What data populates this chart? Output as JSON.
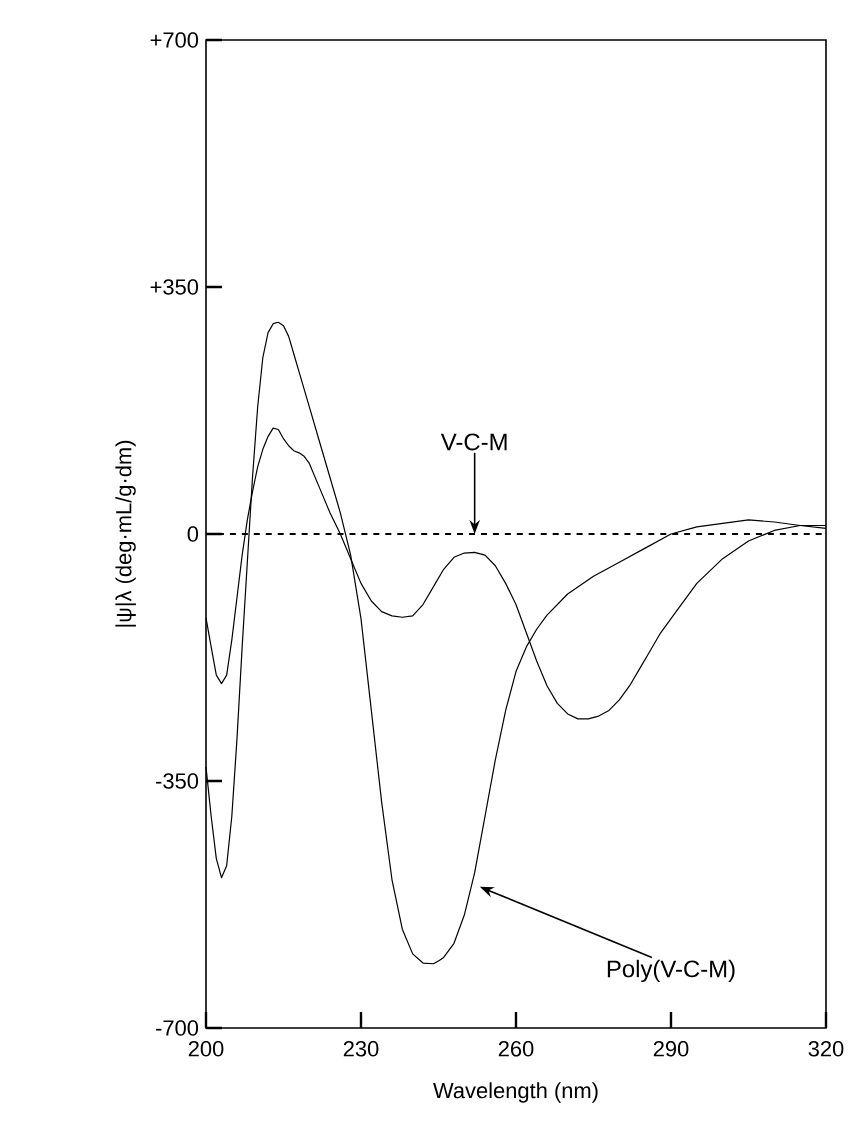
{
  "chart_data": {
    "type": "line",
    "xlabel": "Wavelength (nm)",
    "ylabel": "|ψ|λ (deg·mL/g·dm)",
    "xlim": [
      200,
      320
    ],
    "ylim": [
      -700,
      700
    ],
    "xticks": [
      200,
      230,
      260,
      290,
      320
    ],
    "yticks": [
      {
        "value": -700,
        "label": "-700"
      },
      {
        "value": -350,
        "label": "-350"
      },
      0,
      {
        "value": 350,
        "label": "+350"
      },
      {
        "value": 700,
        "label": "+700"
      }
    ],
    "marker": "none",
    "line_style": "solid",
    "ref_lines": [
      {
        "axis": "y",
        "value": 0,
        "line_style": "dashed",
        "color": "#000000"
      }
    ],
    "annotations": [
      {
        "text": "V-C-M",
        "x": 252,
        "y": 0
      },
      {
        "text": "Poly(V-C-M)",
        "x": 253,
        "y": -500
      }
    ],
    "series": [
      {
        "color": "#000000",
        "x": [
          200,
          201,
          202,
          203,
          204,
          205,
          206,
          207,
          208,
          209,
          210,
          211,
          212,
          213,
          214,
          215,
          216,
          217,
          218,
          220,
          222,
          224,
          226,
          228,
          230,
          232,
          234,
          236,
          238,
          240,
          242,
          244,
          245,
          246,
          248,
          250,
          252,
          254,
          256,
          258,
          260,
          262,
          264,
          266,
          268,
          270,
          275,
          280,
          285,
          290,
          295,
          300,
          305,
          310,
          315,
          320
        ],
        "values": [
          -330,
          -400,
          -460,
          -487,
          -470,
          -400,
          -290,
          -160,
          -40,
          80,
          180,
          250,
          285,
          298,
          300,
          295,
          280,
          255,
          230,
          180,
          130,
          80,
          30,
          -30,
          -120,
          -250,
          -380,
          -490,
          -560,
          -595,
          -608,
          -609,
          -605,
          -600,
          -580,
          -540,
          -480,
          -400,
          -320,
          -250,
          -195,
          -160,
          -135,
          -115,
          -100,
          -85,
          -60,
          -40,
          -20,
          0,
          10,
          15,
          20,
          17,
          12,
          8
        ]
      },
      {
        "color": "#000000",
        "x": [
          200,
          201,
          202,
          203,
          204,
          205,
          206,
          207,
          208,
          209,
          210,
          211,
          212,
          213,
          214,
          215,
          216,
          217,
          218,
          219,
          220,
          222,
          224,
          226,
          228,
          230,
          232,
          234,
          236,
          238,
          240,
          242,
          244,
          246,
          248,
          250,
          252,
          254,
          256,
          258,
          260,
          262,
          264,
          266,
          268,
          270,
          272,
          274,
          276,
          278,
          280,
          282,
          284,
          286,
          288,
          290,
          295,
          300,
          305,
          310,
          315,
          320
        ],
        "values": [
          -119,
          -160,
          -200,
          -212,
          -200,
          -150,
          -90,
          -30,
          20,
          60,
          95,
          120,
          138,
          150,
          148,
          135,
          125,
          118,
          115,
          110,
          100,
          65,
          30,
          0,
          -35,
          -70,
          -95,
          -110,
          -116,
          -118,
          -116,
          -100,
          -75,
          -50,
          -33,
          -27,
          -26,
          -30,
          -45,
          -70,
          -100,
          -140,
          -180,
          -215,
          -240,
          -255,
          -262,
          -262,
          -258,
          -250,
          -235,
          -215,
          -190,
          -165,
          -140,
          -120,
          -70,
          -35,
          -10,
          5,
          12,
          12
        ]
      }
    ]
  }
}
